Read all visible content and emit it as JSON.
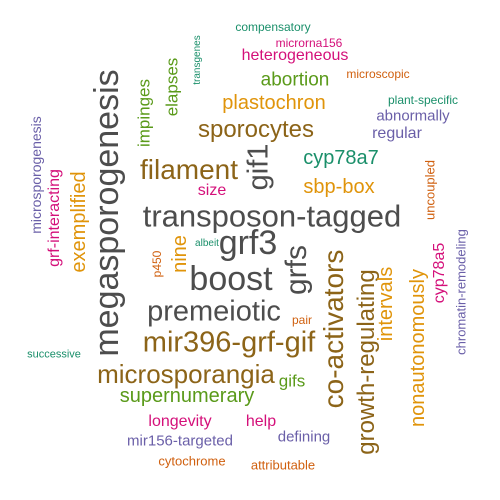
{
  "colors": {
    "dark_gray": "#4d4d4d",
    "brown": "#8c6418",
    "olive_green": "#5a9a1a",
    "orange": "#e0940a",
    "magenta": "#d4107a",
    "purple": "#6a5fa8",
    "teal": "#1a8f6a",
    "dark_orange": "#d0600f"
  },
  "words": [
    {
      "text": "transposon-tagged",
      "color": "dark_gray"
    },
    {
      "text": "megasporogenesis",
      "color": "dark_gray"
    },
    {
      "text": "grf3",
      "color": "dark_gray"
    },
    {
      "text": "boost",
      "color": "dark_gray"
    },
    {
      "text": "grfs",
      "color": "dark_gray"
    },
    {
      "text": "gif1",
      "color": "dark_gray"
    },
    {
      "text": "premeiotic",
      "color": "dark_gray"
    },
    {
      "text": "mir396-grf-gif",
      "color": "brown"
    },
    {
      "text": "microsporangia",
      "color": "brown"
    },
    {
      "text": "filament",
      "color": "brown"
    },
    {
      "text": "sporocytes",
      "color": "brown"
    },
    {
      "text": "co-activators",
      "color": "brown"
    },
    {
      "text": "growth-regulating",
      "color": "brown"
    },
    {
      "text": "supernumerary",
      "color": "olive_green"
    },
    {
      "text": "exemplified",
      "color": "orange"
    },
    {
      "text": "nonautonomously",
      "color": "orange"
    },
    {
      "text": "intervals",
      "color": "orange"
    },
    {
      "text": "plastochron",
      "color": "orange"
    },
    {
      "text": "sbp-box",
      "color": "orange"
    },
    {
      "text": "nine",
      "color": "orange"
    },
    {
      "text": "cyp78a7",
      "color": "teal"
    },
    {
      "text": "abortion",
      "color": "olive_green"
    },
    {
      "text": "impinges",
      "color": "olive_green"
    },
    {
      "text": "elapses",
      "color": "olive_green"
    },
    {
      "text": "gifs",
      "color": "olive_green"
    },
    {
      "text": "heterogeneous",
      "color": "magenta"
    },
    {
      "text": "grf-interacting",
      "color": "magenta"
    },
    {
      "text": "size",
      "color": "magenta"
    },
    {
      "text": "longevity",
      "color": "magenta"
    },
    {
      "text": "cyp78a5",
      "color": "magenta"
    },
    {
      "text": "help",
      "color": "magenta"
    },
    {
      "text": "regular",
      "color": "purple"
    },
    {
      "text": "abnormally",
      "color": "purple"
    },
    {
      "text": "microsporogenesis",
      "color": "purple"
    },
    {
      "text": "chromatin-remodeling",
      "color": "purple"
    },
    {
      "text": "mir156-targeted",
      "color": "purple"
    },
    {
      "text": "defining",
      "color": "purple"
    },
    {
      "text": "compensatory",
      "color": "teal"
    },
    {
      "text": "microrna156",
      "color": "magenta"
    },
    {
      "text": "transgenes",
      "color": "teal"
    },
    {
      "text": "plant-specific",
      "color": "teal"
    },
    {
      "text": "successive",
      "color": "teal"
    },
    {
      "text": "albeit",
      "color": "teal"
    },
    {
      "text": "microscopic",
      "color": "dark_orange"
    },
    {
      "text": "uncoupled",
      "color": "dark_orange"
    },
    {
      "text": "p450",
      "color": "dark_orange"
    },
    {
      "text": "pair",
      "color": "dark_orange"
    },
    {
      "text": "cytochrome",
      "color": "dark_orange"
    },
    {
      "text": "attributable",
      "color": "dark_orange"
    }
  ]
}
